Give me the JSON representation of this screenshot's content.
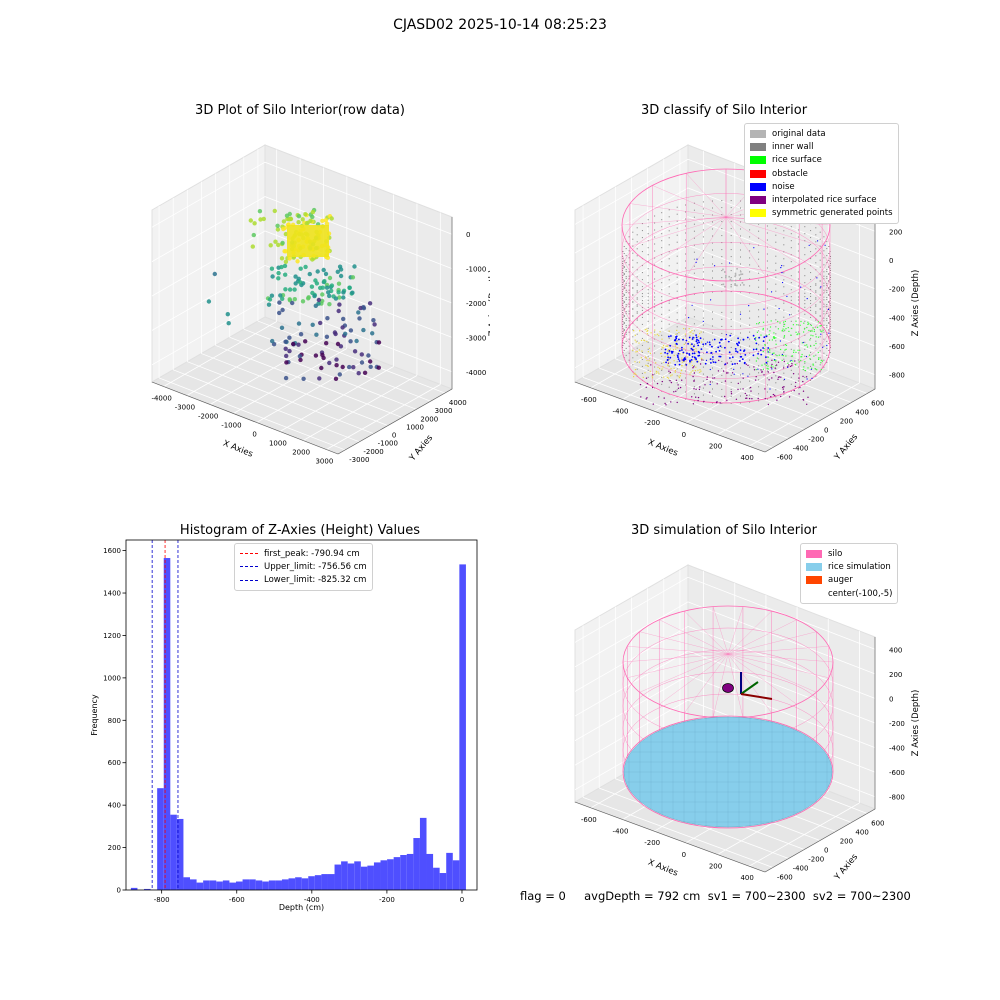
{
  "figure": {
    "suptitle": "CJASD02 2025-10-14 08:25:23",
    "footer": "flag = 0     avgDepth = 792 cm  sv1 = 700~2300  sv2 = 700~2300"
  },
  "colors": {
    "hist_bar": "#4b4bff",
    "first_peak": "#ff0000",
    "limits": "#0000cc",
    "silo": "#ff69b4",
    "rice_sim": "#87ceeb",
    "auger": "#ff4500"
  },
  "chart_data": [
    {
      "id": "raw",
      "type": "scatter",
      "title": "3D Plot of Silo Interior(row data)",
      "xlabel": "X Axies",
      "ylabel": "Y Axies",
      "zlabel": "Z Axies (Depth)",
      "xticks": [
        "-4000",
        "-3000",
        "-2000",
        "-1000",
        "0",
        "1000",
        "2000",
        "3000"
      ],
      "yticks": [
        "-3000",
        "-2000",
        "-1000",
        "0",
        "1000",
        "2000",
        "3000",
        "4000"
      ],
      "zticks": [
        "0",
        "-1000",
        "-2000",
        "-3000",
        "-4000"
      ],
      "colormap": "viridis"
    },
    {
      "id": "classify",
      "type": "scatter",
      "title": "3D classify of Silo Interior",
      "xlabel": "X Axies",
      "ylabel": "Y Axies",
      "zlabel": "Z Axies (Depth)",
      "xticks": [
        "-600",
        "-400",
        "-200",
        "0",
        "200",
        "400"
      ],
      "yticks": [
        "-600",
        "-400",
        "-200",
        "0",
        "200",
        "400",
        "600"
      ],
      "zticks": [
        "200",
        "0",
        "-200",
        "-400",
        "-600",
        "-800"
      ],
      "legend": [
        {
          "label": "original data",
          "color": "#b4b4b4"
        },
        {
          "label": "inner wall",
          "color": "#808080"
        },
        {
          "label": "rice surface",
          "color": "#00ff00"
        },
        {
          "label": "obstacle",
          "color": "#ff0000"
        },
        {
          "label": "noise",
          "color": "#0000ff"
        },
        {
          "label": "interpolated rice surface",
          "color": "#800080"
        },
        {
          "label": "symmetric generated points",
          "color": "#ffff00"
        }
      ]
    },
    {
      "id": "histogram",
      "type": "bar",
      "title": "Histogram of Z-Axies (Height) Values",
      "xlabel": "Depth (cm)",
      "ylabel": "Frequency",
      "xlim": [
        -895,
        40
      ],
      "ylim": [
        0,
        1650
      ],
      "xticks": [
        -800,
        -600,
        -400,
        -200,
        0
      ],
      "yticks": [
        0,
        200,
        400,
        600,
        800,
        1000,
        1200,
        1400,
        1600
      ],
      "bin_start": -882,
      "bin_width": 17.5,
      "values": [
        10,
        0,
        5,
        2,
        480,
        1565,
        355,
        335,
        60,
        50,
        35,
        45,
        45,
        40,
        45,
        35,
        40,
        50,
        50,
        45,
        40,
        45,
        45,
        50,
        55,
        60,
        55,
        65,
        70,
        75,
        75,
        120,
        135,
        125,
        135,
        110,
        115,
        130,
        140,
        145,
        155,
        165,
        170,
        245,
        340,
        170,
        105,
        80,
        175,
        140,
        1535
      ],
      "lines": [
        {
          "label": "first_peak: -790.94 cm",
          "x": -790.94,
          "color": "#ff0000"
        },
        {
          "label": "Upper_limit: -756.56 cm",
          "x": -756.56,
          "color": "#0000cc"
        },
        {
          "label": "Lower_limit: -825.32 cm",
          "x": -825.32,
          "color": "#0000cc"
        }
      ]
    },
    {
      "id": "simulation",
      "type": "scatter",
      "title": "3D simulation of Silo Interior",
      "xlabel": "X Axies",
      "ylabel": "Y Axies",
      "zlabel": "Z Axies (Depth)",
      "xticks": [
        "-600",
        "-400",
        "-200",
        "0",
        "200",
        "400"
      ],
      "yticks": [
        "-600",
        "-400",
        "-200",
        "0",
        "200",
        "400",
        "600"
      ],
      "zticks": [
        "400",
        "200",
        "0",
        "-200",
        "-400",
        "-600",
        "-800"
      ],
      "legend": [
        {
          "label": "silo",
          "color": "#ff69b4"
        },
        {
          "label": "rice simulation",
          "color": "#87ceeb"
        },
        {
          "label": "auger",
          "color": "#ff4500"
        },
        {
          "label": "center(-100,-5)",
          "color": ""
        }
      ]
    }
  ]
}
